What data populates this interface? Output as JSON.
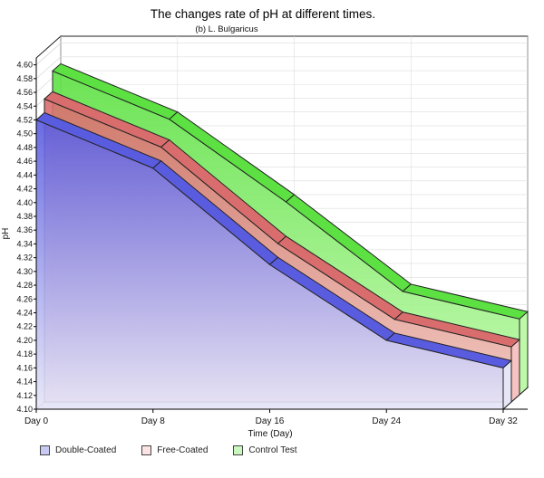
{
  "chart_data": {
    "type": "area",
    "title": "The changes rate of pH at different times.",
    "subtitle": "(b) L. Bulgaricus",
    "xlabel": "Time (Day)",
    "ylabel": "pH",
    "categories": [
      "Day 0",
      "Day 8",
      "Day 16",
      "Day 24",
      "Day 32"
    ],
    "y_ticks": [
      "4.10",
      "4.12",
      "4.14",
      "4.16",
      "4.18",
      "4.20",
      "4.22",
      "4.24",
      "4.26",
      "4.28",
      "4.30",
      "4.32",
      "4.34",
      "4.36",
      "4.38",
      "4.40",
      "4.42",
      "4.44",
      "4.46",
      "4.48",
      "4.50",
      "4.52",
      "4.54",
      "4.56",
      "4.58",
      "4.60"
    ],
    "ylim": [
      4.1,
      4.61
    ],
    "grid": true,
    "three_d": true,
    "legend_position": "bottom-left",
    "series": [
      {
        "name": "Double-Coated",
        "values": [
          4.52,
          4.45,
          4.31,
          4.2,
          4.16
        ],
        "color": "#5a5ce0",
        "color_light": "#e6e6f8"
      },
      {
        "name": "Free-Coated",
        "values": [
          4.54,
          4.47,
          4.33,
          4.22,
          4.18
        ],
        "color": "#d96d6d",
        "color_light": "#f7c2c2"
      },
      {
        "name": "Control Test",
        "values": [
          4.57,
          4.5,
          4.38,
          4.25,
          4.21
        ],
        "color": "#5ce042",
        "color_light": "#bdf9a8"
      }
    ]
  }
}
